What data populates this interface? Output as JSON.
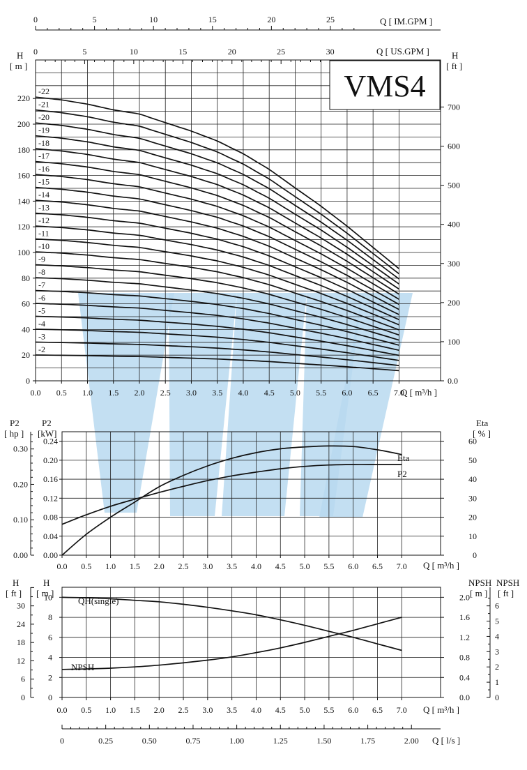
{
  "model_title": "VMS4",
  "watermark_color": "#b9d9f0",
  "chart_data": [
    {
      "name_key": "head",
      "type": "line",
      "top_axis_1": {
        "label": "Q [ IM.GPM ]",
        "ticks": [
          0,
          5,
          10,
          15,
          20,
          25
        ]
      },
      "top_axis_2": {
        "label": "Q [ US.GPM ]",
        "ticks": [
          0,
          5,
          10,
          15,
          20,
          25,
          30
        ]
      },
      "xlabel": "Q [ m³/h ]",
      "ylabel_left": "H\n[ m ]",
      "ylabel_right": "H\n[ ft ]",
      "xlim": [
        0,
        7.8
      ],
      "ylim": [
        0,
        250
      ],
      "xticks": [
        0.0,
        0.5,
        1.0,
        1.5,
        2.0,
        2.5,
        3.0,
        3.5,
        4.0,
        4.5,
        5.0,
        5.5,
        6.0,
        6.5,
        7.0
      ],
      "xtick_labels": [
        "0.0",
        "0.5",
        "1.0",
        "1.5",
        "2.0",
        "2.5",
        "3.0",
        "3.5",
        "4.0",
        "4.5",
        "5.0",
        "5.5",
        "6.0",
        "6.5",
        "7.0"
      ],
      "yticks": [
        0,
        20,
        40,
        60,
        80,
        100,
        120,
        140,
        160,
        180,
        200,
        220
      ],
      "yticks_right": [
        0,
        100,
        200,
        300,
        400,
        500,
        600,
        700
      ],
      "yticks_right_labels": [
        "0.0",
        "100",
        "200",
        "300",
        "400",
        "500",
        "600",
        "700"
      ],
      "stage_head_at_zero": 10.05,
      "stage_head_shape": [
        [
          0,
          1.0
        ],
        [
          0.5,
          0.99
        ],
        [
          1.0,
          0.975
        ],
        [
          1.5,
          0.955
        ],
        [
          2.0,
          0.94
        ],
        [
          2.5,
          0.91
        ],
        [
          3.0,
          0.88
        ],
        [
          3.5,
          0.845
        ],
        [
          4.0,
          0.8
        ],
        [
          4.5,
          0.745
        ],
        [
          5.0,
          0.68
        ],
        [
          5.5,
          0.615
        ],
        [
          6.0,
          0.545
        ],
        [
          6.5,
          0.47
        ],
        [
          7.0,
          0.395
        ]
      ],
      "series_stages": [
        2,
        3,
        4,
        5,
        6,
        7,
        8,
        9,
        10,
        11,
        12,
        13,
        14,
        15,
        16,
        17,
        18,
        19,
        20,
        21,
        22
      ],
      "series_labels": [
        "-2",
        "-3",
        "-4",
        "-5",
        "-6",
        "-7",
        "-8",
        "-9",
        "-10",
        "-11",
        "-12",
        "-13",
        "-14",
        "-15",
        "-16",
        "-17",
        "-18",
        "-19",
        "-20",
        "-21",
        "-22"
      ]
    },
    {
      "name_key": "power",
      "type": "line",
      "xlabel": "Q [ m³/h ]",
      "ylabel_p2_hp": "P2\n[ hp ]",
      "ylabel_p2_kw": "P2\n[kW]",
      "ylabel_eta": "Eta\n[ % ]",
      "xlim": [
        0,
        7.8
      ],
      "ylim_kw": [
        0,
        0.26
      ],
      "xticks": [
        0.0,
        0.5,
        1.0,
        1.5,
        2.0,
        2.5,
        3.0,
        3.5,
        4.0,
        4.5,
        5.0,
        5.5,
        6.0,
        6.5,
        7.0
      ],
      "xtick_labels": [
        "0.0",
        "0.5",
        "1.0",
        "1.5",
        "2.0",
        "2.5",
        "3.0",
        "3.5",
        "4.0",
        "4.5",
        "5.0",
        "5.5",
        "6.0",
        "6.5",
        "7.0"
      ],
      "yticks_kw": [
        0.0,
        0.04,
        0.08,
        0.12,
        0.16,
        0.2,
        0.24
      ],
      "yticks_kw_labels": [
        "0.00",
        "0.04",
        "0.08",
        "0.12",
        "0.16",
        "0.20",
        "0.24"
      ],
      "yticks_hp": [
        0.0,
        0.1,
        0.2,
        0.3
      ],
      "yticks_hp_labels": [
        "0.00",
        "0.10",
        "0.20",
        "0.30"
      ],
      "yticks_eta": [
        0,
        10,
        20,
        30,
        40,
        50,
        60
      ],
      "yticks_eta_labels": [
        "0",
        "10",
        "20",
        "30",
        "40",
        "50",
        "60"
      ],
      "series": [
        {
          "name": "Eta",
          "axis": "eta",
          "x": [
            0,
            0.5,
            1.0,
            1.5,
            2.0,
            2.5,
            3.0,
            3.5,
            4.0,
            4.5,
            5.0,
            5.5,
            6.0,
            6.5,
            7.0
          ],
          "values": [
            0,
            11,
            20,
            28,
            36,
            42,
            47,
            51,
            54,
            56,
            57,
            57.5,
            57.2,
            55.5,
            53
          ]
        },
        {
          "name": "P2",
          "axis": "kw",
          "x": [
            0,
            0.5,
            1.0,
            1.5,
            2.0,
            2.5,
            3.0,
            3.5,
            4.0,
            4.5,
            5.0,
            5.5,
            6.0,
            6.5,
            7.0
          ],
          "values": [
            0.065,
            0.085,
            0.103,
            0.118,
            0.132,
            0.145,
            0.157,
            0.167,
            0.175,
            0.182,
            0.187,
            0.19,
            0.191,
            0.191,
            0.191
          ]
        }
      ]
    },
    {
      "name_key": "single",
      "type": "line",
      "xlabel": "Q [ m³/h ]",
      "ylabel_h_ft": "H\n[ ft ]",
      "ylabel_h_m": "H\n[ m ]",
      "ylabel_npsh_m": "NPSH\n[ m ]",
      "ylabel_npsh_ft": "NPSH\n[ ft ]",
      "xlim": [
        0,
        7.8
      ],
      "ylim_m": [
        0,
        11
      ],
      "xticks": [
        0.0,
        0.5,
        1.0,
        1.5,
        2.0,
        2.5,
        3.0,
        3.5,
        4.0,
        4.5,
        5.0,
        5.5,
        6.0,
        6.5,
        7.0
      ],
      "xtick_labels": [
        "0.0",
        "0.5",
        "1.0",
        "1.5",
        "2.0",
        "2.5",
        "3.0",
        "3.5",
        "4.0",
        "4.5",
        "5.0",
        "5.5",
        "6.0",
        "6.5",
        "7.0"
      ],
      "yticks_m": [
        0,
        2,
        4,
        6,
        8,
        10
      ],
      "yticks_ft": [
        0,
        6,
        12,
        18,
        24,
        30
      ],
      "yticks_npsh_m": [
        0,
        0.4,
        0.8,
        1.2,
        1.6,
        2.0
      ],
      "yticks_npsh_m_labels": [
        "0.0",
        "0.4",
        "0.8",
        "1.2",
        "1.6",
        "2.0"
      ],
      "yticks_npsh_ft": [
        0,
        1,
        2,
        3,
        4,
        5,
        6
      ],
      "series": [
        {
          "name": "QH(single)",
          "axis": "m",
          "x": [
            0,
            0.5,
            1.0,
            1.5,
            2.0,
            2.5,
            3.0,
            3.5,
            4.0,
            4.5,
            5.0,
            5.5,
            6.0,
            6.5,
            7.0
          ],
          "values": [
            10.0,
            9.95,
            9.85,
            9.7,
            9.55,
            9.3,
            9.0,
            8.65,
            8.25,
            7.75,
            7.2,
            6.6,
            6.0,
            5.35,
            4.7
          ]
        },
        {
          "name": "NPSH",
          "axis": "npsh_m",
          "x": [
            0,
            0.5,
            1.0,
            1.5,
            2.0,
            2.5,
            3.0,
            3.5,
            4.0,
            4.5,
            5.0,
            5.5,
            6.0,
            6.5,
            7.0
          ],
          "values": [
            0.56,
            0.57,
            0.585,
            0.61,
            0.645,
            0.69,
            0.745,
            0.81,
            0.895,
            0.99,
            1.1,
            1.22,
            1.34,
            1.47,
            1.6
          ]
        }
      ]
    },
    {
      "name_key": "ls_axis",
      "type": "axis",
      "xlabel": "Q [ l/s ]",
      "ticks": [
        0,
        0.25,
        0.5,
        0.75,
        1.0,
        1.25,
        1.5,
        1.75,
        2.0
      ],
      "tick_labels": [
        "0",
        "0.25",
        "0.50",
        "0.75",
        "1.00",
        "1.25",
        "1.50",
        "1.75",
        "2.00"
      ]
    }
  ]
}
